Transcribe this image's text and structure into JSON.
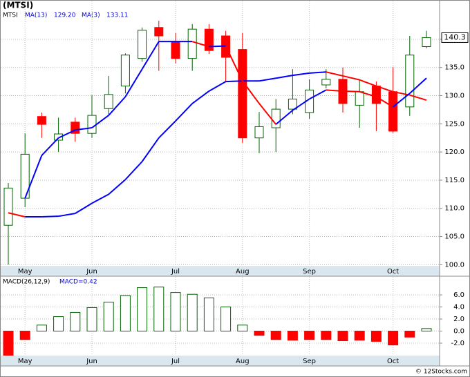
{
  "chart_data": [
    {
      "type": "candlestick",
      "title": "(MTSI)",
      "symbol": "MTSI",
      "categories": [
        null,
        "May",
        null,
        null,
        null,
        "Jun",
        null,
        null,
        null,
        null,
        "Jul",
        null,
        null,
        null,
        "Aug",
        null,
        null,
        null,
        "Sep",
        null,
        null,
        null,
        null,
        "Oct",
        null,
        null
      ],
      "open": [
        107.0,
        111.8,
        126.3,
        122.1,
        125.3,
        123.3,
        127.7,
        131.7,
        136.6,
        142.1,
        139.6,
        136.6,
        141.8,
        140.6,
        138.2,
        122.5,
        124.3,
        127.6,
        127.0,
        131.9,
        132.9,
        128.3,
        131.7,
        130.7,
        128.0,
        138.7
      ],
      "high": [
        114.5,
        123.3,
        127.0,
        126.1,
        126.1,
        130.1,
        133.5,
        137.5,
        142.1,
        143.3,
        141.1,
        142.7,
        142.7,
        141.5,
        141.1,
        127.1,
        129.4,
        134.7,
        132.9,
        134.7,
        135.0,
        132.9,
        132.5,
        135.1,
        140.6,
        141.5
      ],
      "low": [
        100.0,
        110.2,
        122.5,
        120.0,
        121.8,
        122.5,
        126.7,
        130.4,
        136.0,
        134.4,
        135.7,
        134.4,
        137.4,
        132.5,
        121.6,
        119.8,
        120.0,
        126.7,
        125.9,
        131.3,
        127.0,
        124.3,
        123.7,
        123.4,
        126.4,
        138.4
      ],
      "close": [
        113.6,
        119.6,
        124.9,
        123.2,
        123.3,
        126.5,
        130.2,
        137.2,
        141.6,
        140.6,
        136.6,
        141.8,
        138.0,
        136.8,
        122.5,
        124.5,
        127.6,
        129.4,
        131.0,
        132.9,
        128.6,
        130.7,
        128.6,
        123.7,
        137.2,
        140.3
      ],
      "up_color": "#006400",
      "down_color": "#ff0000",
      "series": [
        {
          "name": "MA(13)",
          "label": "129.20",
          "values": [
            109.2,
            108.5,
            108.5,
            108.6,
            109.1,
            110.9,
            112.5,
            115.1,
            118.3,
            122.5,
            125.5,
            128.6,
            130.8,
            132.5,
            132.6,
            132.6,
            133.1,
            133.6,
            134.0,
            134.2,
            133.5,
            132.8,
            131.7,
            130.7,
            130.1,
            129.2
          ]
        },
        {
          "name": "MA(3)",
          "label": "133.11",
          "values": [
            null,
            111.8,
            119.4,
            122.5,
            123.9,
            124.3,
            126.5,
            129.8,
            134.7,
            139.6,
            139.6,
            139.6,
            138.7,
            138.8,
            132.6,
            128.6,
            124.9,
            127.4,
            129.4,
            131.0,
            130.8,
            130.7,
            129.8,
            128.0,
            130.4,
            133.11
          ]
        }
      ],
      "rise_color": "#0000ff",
      "fall_color": "#ff0000",
      "ylim": [
        99.8,
        145.5
      ],
      "yticks": [
        {
          "value": 100,
          "label": "100.0"
        },
        {
          "value": 105,
          "label": "105.0"
        },
        {
          "value": 110,
          "label": "110.0"
        },
        {
          "value": 115,
          "label": "115.0"
        },
        {
          "value": 120,
          "label": "120.0"
        },
        {
          "value": 125,
          "label": "125.0"
        },
        {
          "value": 130,
          "label": "130.0"
        },
        {
          "value": 135,
          "label": "135.0"
        },
        {
          "value": 140,
          "label": "140.0"
        }
      ],
      "grid": true
    },
    {
      "type": "bar",
      "title": "MACD(26,12,9)",
      "label": "MACD=0.42",
      "categories": [
        null,
        "May",
        null,
        null,
        null,
        "Jun",
        null,
        null,
        null,
        null,
        "Jul",
        null,
        null,
        null,
        "Aug",
        null,
        null,
        null,
        "Sep",
        null,
        null,
        null,
        null,
        "Oct",
        null,
        null
      ],
      "values": [
        -4.0,
        -1.4,
        1.0,
        2.4,
        3.1,
        3.9,
        4.8,
        5.9,
        7.2,
        7.3,
        6.4,
        6.1,
        5.5,
        4.0,
        1.0,
        -0.7,
        -1.4,
        -1.5,
        -1.4,
        -1.4,
        -1.6,
        -1.5,
        -1.7,
        -2.3,
        -1.0,
        0.42
      ],
      "up_color": "#006400",
      "down_color": "#ff0000",
      "ylim": [
        -4.06,
        9.1
      ],
      "yticks": [
        {
          "value": -2,
          "label": "-2.0"
        },
        {
          "value": 0,
          "label": "0.0"
        },
        {
          "value": 2,
          "label": "2.0"
        },
        {
          "value": 4,
          "label": "4.0"
        },
        {
          "value": 6,
          "label": "6.0"
        }
      ],
      "grid": true
    },
    {
      "type": "footer",
      "title": "© 12Stocks.com"
    }
  ]
}
